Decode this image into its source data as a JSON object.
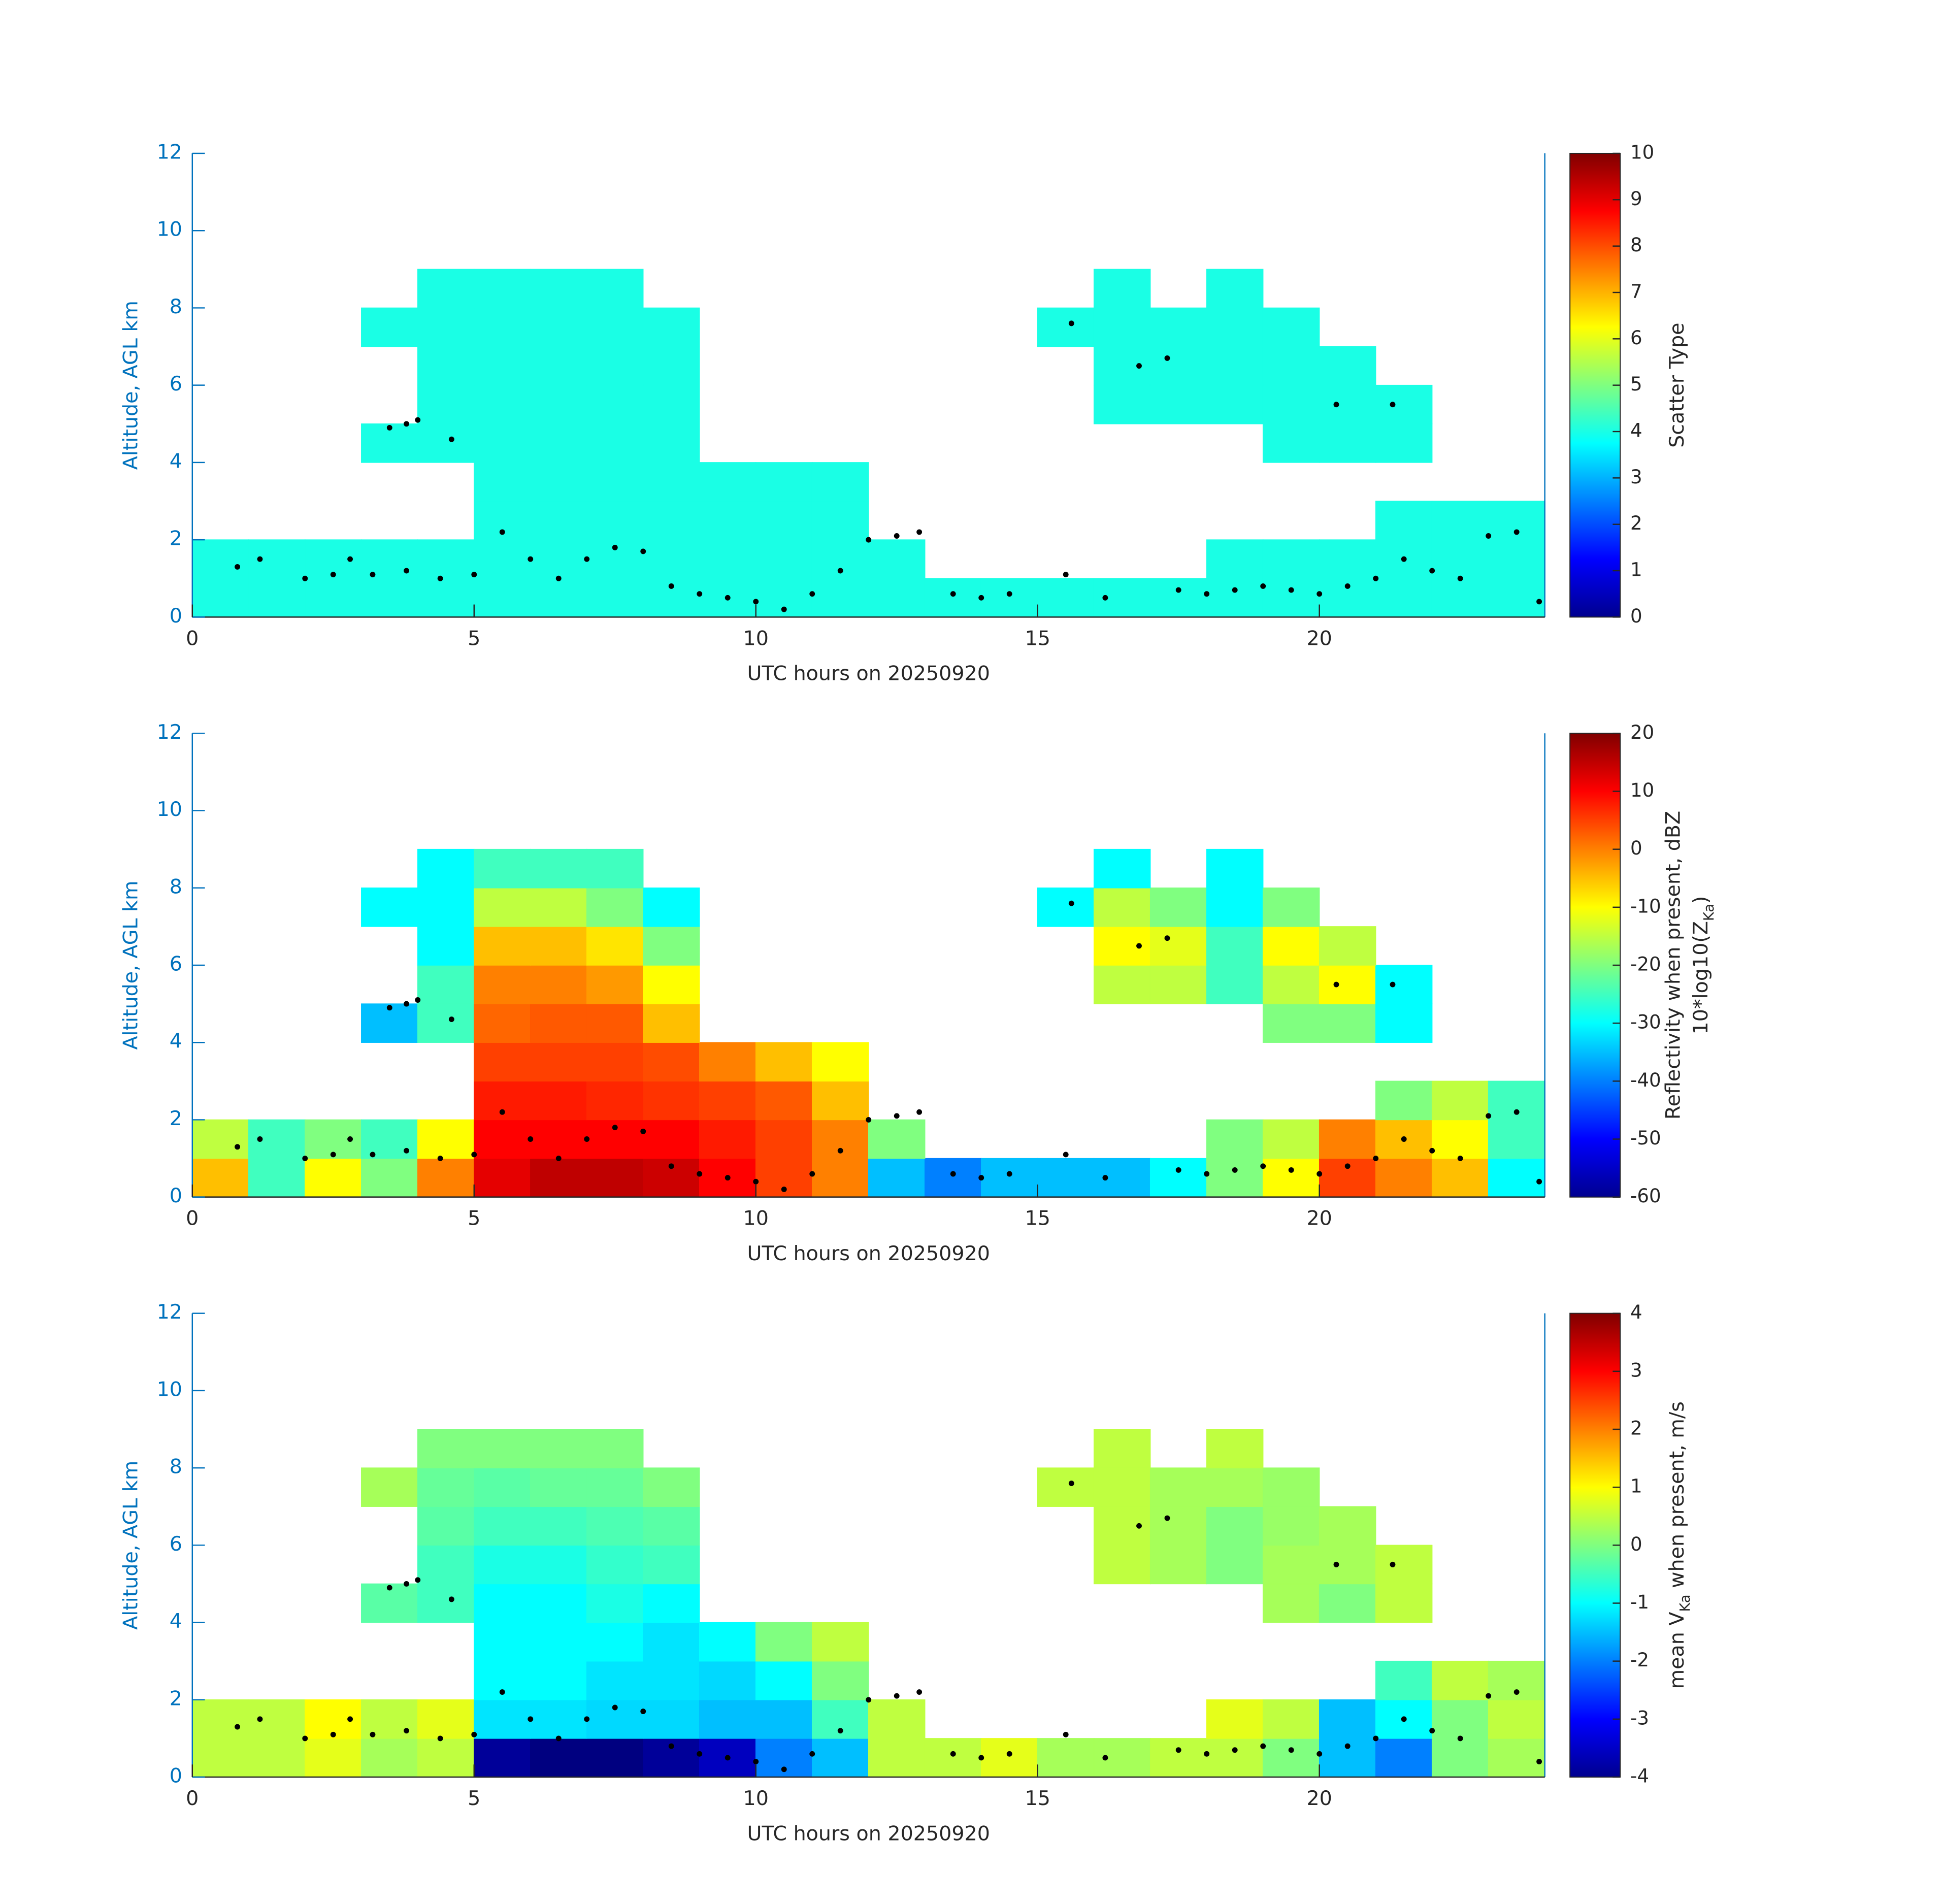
{
  "chart_data": [
    {
      "type": "heatmap",
      "colormap": "jet",
      "xlabel": "UTC hours on 20250920",
      "ylabel": "Altitude, AGL km",
      "xlim": [
        0,
        24
      ],
      "ylim": [
        0,
        12
      ],
      "xticks": [
        0,
        5,
        10,
        15,
        20
      ],
      "yticks": [
        0,
        2,
        4,
        6,
        8,
        10,
        12
      ],
      "x_edges": [
        0,
        1,
        2,
        3,
        4,
        5,
        6,
        7,
        8,
        9,
        10,
        11,
        12,
        13,
        14,
        15,
        16,
        17,
        18,
        19,
        20,
        21,
        22,
        23,
        24
      ],
      "y_edges": [
        0,
        1,
        2,
        3,
        4,
        5,
        6,
        7,
        8,
        9
      ],
      "z": [
        [
          4,
          4,
          4,
          4,
          4,
          4,
          4,
          4,
          4,
          4,
          4,
          4,
          4,
          4,
          4,
          4,
          4,
          4,
          4,
          4,
          4,
          4,
          4,
          4
        ],
        [
          4,
          4,
          4,
          4,
          4,
          4,
          4,
          4,
          4,
          4,
          4,
          4,
          4,
          null,
          null,
          null,
          null,
          null,
          4,
          4,
          4,
          4,
          4,
          4
        ],
        [
          null,
          null,
          null,
          null,
          null,
          4,
          4,
          4,
          4,
          4,
          4,
          4,
          null,
          null,
          null,
          null,
          null,
          null,
          null,
          null,
          null,
          4,
          4,
          4
        ],
        [
          null,
          null,
          null,
          null,
          null,
          4,
          4,
          4,
          4,
          4,
          4,
          4,
          null,
          null,
          null,
          null,
          null,
          null,
          null,
          null,
          null,
          null,
          null,
          null
        ],
        [
          null,
          null,
          null,
          4,
          4,
          4,
          4,
          4,
          4,
          null,
          null,
          null,
          null,
          null,
          null,
          null,
          null,
          null,
          null,
          4,
          4,
          4,
          null,
          null
        ],
        [
          null,
          null,
          null,
          null,
          4,
          4,
          4,
          4,
          4,
          null,
          null,
          null,
          null,
          null,
          null,
          null,
          4,
          4,
          4,
          4,
          4,
          4,
          null,
          null
        ],
        [
          null,
          null,
          null,
          null,
          4,
          4,
          4,
          4,
          4,
          null,
          null,
          null,
          null,
          null,
          null,
          null,
          4,
          4,
          4,
          4,
          4,
          null,
          null,
          null
        ],
        [
          null,
          null,
          null,
          4,
          4,
          4,
          4,
          4,
          4,
          null,
          null,
          null,
          null,
          null,
          null,
          4,
          4,
          4,
          4,
          4,
          null,
          null,
          null,
          null
        ],
        [
          null,
          null,
          null,
          null,
          4,
          4,
          4,
          4,
          null,
          null,
          null,
          null,
          null,
          null,
          null,
          null,
          4,
          null,
          4,
          null,
          null,
          null,
          null,
          null
        ]
      ],
      "clim": [
        0,
        10
      ],
      "cticks": [
        0,
        1,
        2,
        3,
        4,
        5,
        6,
        7,
        8,
        9,
        10
      ],
      "colorbar_label": [
        [
          "Scatter Type"
        ]
      ],
      "overlay": {
        "color": "#000000",
        "x": [
          0.8,
          1.2,
          2.0,
          2.5,
          2.8,
          3.2,
          3.5,
          3.8,
          4.0,
          4.6,
          3.8,
          4.4,
          5.0,
          5.5,
          6.0,
          6.5,
          7.0,
          7.5,
          8.0,
          8.5,
          9.0,
          9.5,
          10.0,
          10.5,
          11.0,
          11.5,
          12.0,
          12.5,
          12.9,
          13.5,
          14.0,
          14.5,
          15.5,
          15.6,
          16.2,
          16.8,
          17.3,
          17.5,
          18.0,
          18.5,
          19.0,
          19.5,
          20.0,
          20.3,
          20.5,
          21.0,
          21.3,
          21.5,
          22.0,
          22.5,
          23.0,
          23.5,
          23.9
        ],
        "y": [
          1.3,
          1.5,
          1.0,
          1.1,
          1.5,
          1.1,
          4.9,
          5.0,
          5.1,
          4.6,
          1.2,
          1.0,
          1.1,
          2.2,
          1.5,
          1.0,
          1.5,
          1.8,
          1.7,
          0.8,
          0.6,
          0.5,
          0.4,
          0.2,
          0.6,
          1.2,
          2.0,
          2.1,
          2.2,
          0.6,
          0.5,
          0.6,
          1.1,
          7.6,
          0.5,
          6.5,
          6.7,
          0.7,
          0.6,
          0.7,
          0.8,
          0.7,
          0.6,
          5.5,
          0.8,
          1.0,
          5.5,
          1.5,
          1.2,
          1.0,
          2.1,
          2.2,
          0.4
        ]
      }
    },
    {
      "type": "heatmap",
      "colormap": "jet",
      "xlabel": "UTC hours on 20250920",
      "ylabel": "Altitude, AGL km",
      "xlim": [
        0,
        24
      ],
      "ylim": [
        0,
        12
      ],
      "xticks": [
        0,
        5,
        10,
        15,
        20
      ],
      "yticks": [
        0,
        2,
        4,
        6,
        8,
        10,
        12
      ],
      "x_edges": [
        0,
        1,
        2,
        3,
        4,
        5,
        6,
        7,
        8,
        9,
        10,
        11,
        12,
        13,
        14,
        15,
        16,
        17,
        18,
        19,
        20,
        21,
        22,
        23,
        24
      ],
      "y_edges": [
        0,
        1,
        2,
        3,
        4,
        5,
        6,
        7,
        8,
        9
      ],
      "z": [
        [
          -5,
          -25,
          -10,
          -20,
          0,
          12,
          15,
          15,
          14,
          10,
          5,
          0,
          -35,
          -40,
          -35,
          -35,
          -35,
          -30,
          -20,
          -10,
          5,
          0,
          -5,
          -30
        ],
        [
          -15,
          -25,
          -20,
          -25,
          -10,
          10,
          10,
          10,
          10,
          8,
          5,
          0,
          -20,
          null,
          null,
          null,
          null,
          null,
          -20,
          -15,
          0,
          -5,
          -10,
          -25
        ],
        [
          null,
          null,
          null,
          null,
          null,
          8,
          8,
          7,
          6,
          5,
          3,
          -5,
          null,
          null,
          null,
          null,
          null,
          null,
          null,
          null,
          null,
          -20,
          -15,
          -25
        ],
        [
          null,
          null,
          null,
          null,
          null,
          5,
          5,
          5,
          4,
          0,
          -5,
          -10,
          null,
          null,
          null,
          null,
          null,
          null,
          null,
          null,
          null,
          null,
          null,
          null
        ],
        [
          null,
          null,
          null,
          -35,
          -25,
          2,
          3,
          3,
          -5,
          null,
          null,
          null,
          null,
          null,
          null,
          null,
          null,
          null,
          null,
          -20,
          -20,
          -30,
          null,
          null
        ],
        [
          null,
          null,
          null,
          null,
          -25,
          0,
          0,
          -2,
          -10,
          null,
          null,
          null,
          null,
          null,
          null,
          null,
          -15,
          -15,
          -25,
          -15,
          -10,
          -30,
          null,
          null
        ],
        [
          null,
          null,
          null,
          null,
          -30,
          -5,
          -5,
          -8,
          -20,
          null,
          null,
          null,
          null,
          null,
          null,
          null,
          -10,
          -12,
          -25,
          -10,
          -15,
          null,
          null,
          null
        ],
        [
          null,
          null,
          null,
          -30,
          -30,
          -15,
          -15,
          -20,
          -30,
          null,
          null,
          null,
          null,
          null,
          null,
          -30,
          -15,
          -20,
          -30,
          -20,
          null,
          null,
          null,
          null
        ],
        [
          null,
          null,
          null,
          null,
          -30,
          -25,
          -25,
          -25,
          null,
          null,
          null,
          null,
          null,
          null,
          null,
          null,
          -30,
          null,
          -30,
          null,
          null,
          null,
          null,
          null
        ]
      ],
      "clim": [
        -60,
        20
      ],
      "cticks": [
        -60,
        -50,
        -40,
        -30,
        -20,
        -10,
        0,
        10,
        20
      ],
      "colorbar_label": [
        [
          "Reflectivity when present, dBZ"
        ],
        [
          "10*log10(Z",
          "Ka",
          ")"
        ]
      ]
    },
    {
      "type": "heatmap",
      "colormap": "jet",
      "xlabel": "UTC hours on 20250920",
      "ylabel": "Altitude, AGL km",
      "xlim": [
        0,
        24
      ],
      "ylim": [
        0,
        12
      ],
      "xticks": [
        0,
        5,
        10,
        15,
        20
      ],
      "yticks": [
        0,
        2,
        4,
        6,
        8,
        10,
        12
      ],
      "x_edges": [
        0,
        1,
        2,
        3,
        4,
        5,
        6,
        7,
        8,
        9,
        10,
        11,
        12,
        13,
        14,
        15,
        16,
        17,
        18,
        19,
        20,
        21,
        22,
        23,
        24
      ],
      "y_edges": [
        0,
        1,
        2,
        3,
        4,
        5,
        6,
        7,
        8,
        9
      ],
      "z": [
        [
          0.5,
          0.5,
          0.8,
          0.3,
          0.5,
          -3.8,
          -4,
          -4,
          -3.8,
          -3.5,
          -2,
          -1.5,
          0.5,
          0.5,
          0.8,
          0.3,
          0.3,
          0.5,
          0.5,
          0,
          -1.5,
          -2,
          0,
          0.3
        ],
        [
          0.5,
          0.5,
          1,
          0.5,
          0.8,
          -1.2,
          -1.2,
          -1.3,
          -1.3,
          -1.5,
          -1.5,
          -0.5,
          0.5,
          null,
          null,
          null,
          null,
          null,
          0.8,
          0.5,
          -1.5,
          -1,
          0,
          0.5
        ],
        [
          null,
          null,
          null,
          null,
          null,
          -1,
          -1,
          -1.2,
          -1.2,
          -1.3,
          -1,
          0,
          null,
          null,
          null,
          null,
          null,
          null,
          null,
          null,
          null,
          -0.5,
          0.5,
          0.3
        ],
        [
          null,
          null,
          null,
          null,
          null,
          -1,
          -1,
          -1,
          -1.2,
          -1,
          0,
          0.5,
          null,
          null,
          null,
          null,
          null,
          null,
          null,
          null,
          null,
          null,
          null,
          null
        ],
        [
          null,
          null,
          null,
          -0.3,
          -0.5,
          -1,
          -1,
          -0.8,
          -1,
          null,
          null,
          null,
          null,
          null,
          null,
          null,
          null,
          null,
          null,
          0.3,
          0,
          0.5,
          null,
          null
        ],
        [
          null,
          null,
          null,
          null,
          -0.5,
          -0.8,
          -0.8,
          -0.6,
          -0.5,
          null,
          null,
          null,
          null,
          null,
          null,
          null,
          0.5,
          0.3,
          0,
          0.3,
          0.3,
          0.5,
          null,
          null
        ],
        [
          null,
          null,
          null,
          null,
          -0.3,
          -0.5,
          -0.5,
          -0.4,
          -0.3,
          null,
          null,
          null,
          null,
          null,
          null,
          null,
          0.5,
          0.3,
          0,
          0.2,
          0.3,
          null,
          null,
          null
        ],
        [
          null,
          null,
          null,
          0.3,
          -0.2,
          -0.3,
          -0.2,
          -0.2,
          0,
          null,
          null,
          null,
          null,
          null,
          null,
          0.5,
          0.5,
          0.3,
          0.3,
          0.2,
          null,
          null,
          null,
          null
        ],
        [
          null,
          null,
          null,
          null,
          0,
          0,
          0,
          0,
          null,
          null,
          null,
          null,
          null,
          null,
          null,
          null,
          0.5,
          null,
          0.5,
          null,
          null,
          null,
          null,
          null
        ]
      ],
      "clim": [
        -4,
        4
      ],
      "cticks": [
        -4,
        -3,
        -2,
        -1,
        0,
        1,
        2,
        3,
        4
      ],
      "colorbar_label": [
        [
          "mean V",
          "Ka",
          " when present, m/s"
        ]
      ]
    }
  ]
}
